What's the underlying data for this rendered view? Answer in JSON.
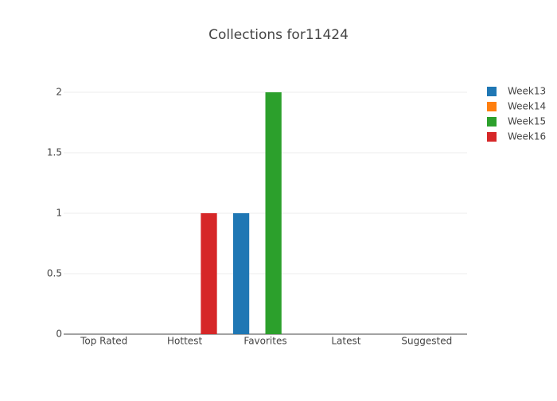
{
  "chart_data": {
    "type": "bar",
    "title": "Collections for11424",
    "categories": [
      "Top Rated",
      "Hottest",
      "Favorites",
      "Latest",
      "Suggested"
    ],
    "series": [
      {
        "name": "Week13",
        "color": "#1f77b4",
        "values": [
          0,
          0,
          1,
          0,
          0
        ]
      },
      {
        "name": "Week14",
        "color": "#ff7f0e",
        "values": [
          0,
          0,
          0,
          0,
          0
        ]
      },
      {
        "name": "Week15",
        "color": "#2ca02c",
        "values": [
          0,
          0,
          2,
          0,
          0
        ]
      },
      {
        "name": "Week16",
        "color": "#d62728",
        "values": [
          0,
          1,
          0,
          0,
          0
        ]
      }
    ],
    "ylim": [
      0,
      2.105
    ],
    "yticks": [
      0,
      0.5,
      1,
      1.5,
      2
    ],
    "grid": true,
    "legend": "right"
  }
}
